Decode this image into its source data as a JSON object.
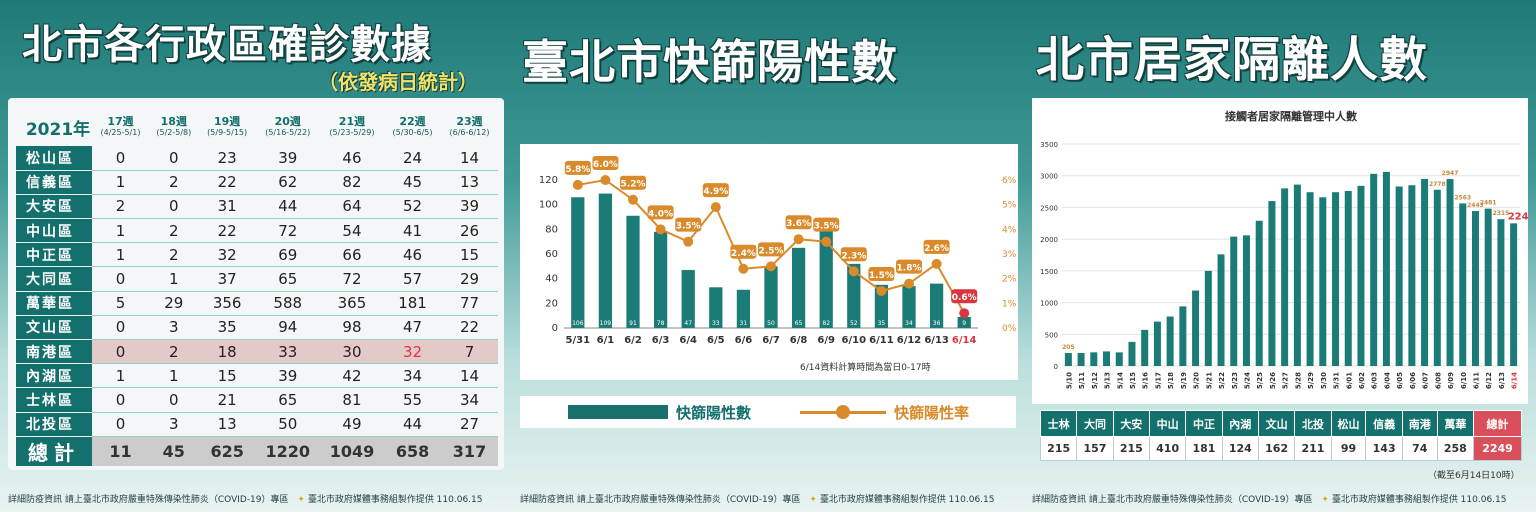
{
  "panel1": {
    "title": "北市各行政區確診數據",
    "subtitle": "（依發病日統計）",
    "year_label": "2021年",
    "weeks": [
      {
        "label": "17週",
        "range": "(4/25-5/1)"
      },
      {
        "label": "18週",
        "range": "(5/2-5/8)"
      },
      {
        "label": "19週",
        "range": "(5/9-5/15)"
      },
      {
        "label": "20週",
        "range": "(5/16-5/22)"
      },
      {
        "label": "21週",
        "range": "(5/23-5/29)"
      },
      {
        "label": "22週",
        "range": "(5/30-6/5)"
      },
      {
        "label": "23週",
        "range": "(6/6-6/12)"
      }
    ],
    "rows": [
      {
        "district": "松山區",
        "values": [
          "0",
          "0",
          "23",
          "39",
          "46",
          "24",
          "14"
        ]
      },
      {
        "district": "信義區",
        "values": [
          "1",
          "2",
          "22",
          "62",
          "82",
          "45",
          "13"
        ]
      },
      {
        "district": "大安區",
        "values": [
          "2",
          "0",
          "31",
          "44",
          "64",
          "52",
          "39"
        ]
      },
      {
        "district": "中山區",
        "values": [
          "1",
          "2",
          "22",
          "72",
          "54",
          "41",
          "26"
        ]
      },
      {
        "district": "中正區",
        "values": [
          "1",
          "2",
          "32",
          "69",
          "66",
          "46",
          "15"
        ]
      },
      {
        "district": "大同區",
        "values": [
          "0",
          "1",
          "37",
          "65",
          "72",
          "57",
          "29"
        ]
      },
      {
        "district": "萬華區",
        "values": [
          "5",
          "29",
          "356",
          "588",
          "365",
          "181",
          "77"
        ]
      },
      {
        "district": "文山區",
        "values": [
          "0",
          "3",
          "35",
          "94",
          "98",
          "47",
          "22"
        ]
      },
      {
        "district": "南港區",
        "values": [
          "0",
          "2",
          "18",
          "33",
          "30",
          "32",
          "7"
        ]
      },
      {
        "district": "內湖區",
        "values": [
          "1",
          "1",
          "15",
          "39",
          "42",
          "34",
          "14"
        ]
      },
      {
        "district": "士林區",
        "values": [
          "0",
          "0",
          "21",
          "65",
          "81",
          "55",
          "34"
        ]
      },
      {
        "district": "北投區",
        "values": [
          "0",
          "3",
          "13",
          "50",
          "49",
          "44",
          "27"
        ]
      }
    ],
    "highlight_row": "南港區",
    "total": {
      "label": "總計",
      "values": [
        "11",
        "45",
        "625",
        "1220",
        "1049",
        "658",
        "317"
      ]
    },
    "footer_left": "詳細防疫資訊 請上臺北市政府嚴重特殊傳染性肺炎（COVID-19）專區",
    "footer_right": "臺北市政府媒體事務組製作提供 110.06.15"
  },
  "panel2": {
    "title": "臺北市快篩陽性數",
    "note": "6/14資料計算時間為當日0-17時",
    "legend_bar": "快篩陽性數",
    "legend_line": "快篩陽性率",
    "footer_left": "詳細防疫資訊 請上臺北市政府嚴重特殊傳染性肺炎（COVID-19）專區",
    "footer_right": "臺北市政府媒體事務組製作提供 110.06.15"
  },
  "panel3": {
    "title": "北市居家隔離人數",
    "footer_left": "詳細防疫資訊 請上臺北市政府嚴重特殊傳染性肺炎（COVID-19）專區",
    "footer_right": "臺北市政府媒體事務組製作提供 110.06.15",
    "as_of": "（截至6月14日10時）",
    "districts": [
      {
        "name": "士林",
        "value": "215"
      },
      {
        "name": "大同",
        "value": "157"
      },
      {
        "name": "大安",
        "value": "215"
      },
      {
        "name": "中山",
        "value": "410"
      },
      {
        "name": "中正",
        "value": "181"
      },
      {
        "name": "內湖",
        "value": "124"
      },
      {
        "name": "文山",
        "value": "162"
      },
      {
        "name": "北投",
        "value": "211"
      },
      {
        "name": "松山",
        "value": "99"
      },
      {
        "name": "信義",
        "value": "143"
      },
      {
        "name": "南港",
        "value": "74"
      },
      {
        "name": "萬華",
        "value": "258"
      },
      {
        "name": "總計",
        "value": "2249"
      }
    ]
  },
  "colors": {
    "teal": "#13706d",
    "bar": "#1b7b77",
    "line": "#d98b2b",
    "red": "#d9373f"
  },
  "chart_data": [
    {
      "type": "bar",
      "title": "臺北市快篩陽性數",
      "categories": [
        "5/31",
        "6/1",
        "6/2",
        "6/3",
        "6/4",
        "6/5",
        "6/6",
        "6/7",
        "6/8",
        "6/9",
        "6/10",
        "6/11",
        "6/12",
        "6/13",
        "6/14"
      ],
      "series": [
        {
          "name": "快篩陽性數",
          "type": "bar",
          "axis": "left",
          "values": [
            106,
            109,
            91,
            78,
            47,
            33,
            31,
            50,
            65,
            82,
            52,
            35,
            34,
            36,
            9
          ]
        },
        {
          "name": "快篩陽性率",
          "type": "line",
          "axis": "right",
          "unit": "%",
          "values": [
            5.8,
            6.0,
            5.2,
            4.0,
            3.5,
            4.9,
            2.4,
            2.5,
            3.6,
            3.5,
            2.3,
            1.5,
            1.8,
            2.6,
            0.6
          ]
        }
      ],
      "y_left_ticks": [
        "0",
        "20",
        "40",
        "60",
        "80",
        "100",
        "120"
      ],
      "y_right_ticks": [
        "0%",
        "1%",
        "2%",
        "3%",
        "4%",
        "5%",
        "6%"
      ],
      "ylim_left": [
        0,
        120
      ],
      "ylim_right": [
        0,
        6
      ],
      "highlight_category": "6/14",
      "grid": false
    },
    {
      "type": "bar",
      "title": "接觸者居家隔離管理中人數",
      "categories": [
        "5/10",
        "5/11",
        "5/12",
        "5/13",
        "5/14",
        "5/15",
        "5/16",
        "5/17",
        "5/18",
        "5/19",
        "5/20",
        "5/21",
        "5/22",
        "5/23",
        "5/24",
        "5/25",
        "5/26",
        "5/27",
        "5/28",
        "5/29",
        "5/30",
        "5/31",
        "6/01",
        "6/02",
        "6/03",
        "6/04",
        "6/05",
        "6/06",
        "6/07",
        "6/08",
        "6/09",
        "6/10",
        "6/11",
        "6/12",
        "6/13",
        "6/14"
      ],
      "values": [
        205,
        205,
        215,
        230,
        215,
        380,
        570,
        700,
        780,
        940,
        1190,
        1500,
        1760,
        2040,
        2060,
        2290,
        2600,
        2800,
        2860,
        2740,
        2660,
        2740,
        2760,
        2840,
        3030,
        3060,
        2830,
        2850,
        2950,
        2778,
        2947,
        2563,
        2443,
        2481,
        2315,
        2249
      ],
      "labeled_points": {
        "5/10": "205",
        "6/08": "2778",
        "6/09": "2947",
        "6/10": "2563",
        "6/11": "2443",
        "6/12": "2481",
        "6/13": "2315",
        "6/14": "2249"
      },
      "y_ticks": [
        "0",
        "500",
        "1000",
        "1500",
        "2000",
        "2500",
        "3000",
        "3500"
      ],
      "ylim": [
        0,
        3500
      ],
      "highlight_category": "6/14",
      "grid": true
    }
  ]
}
